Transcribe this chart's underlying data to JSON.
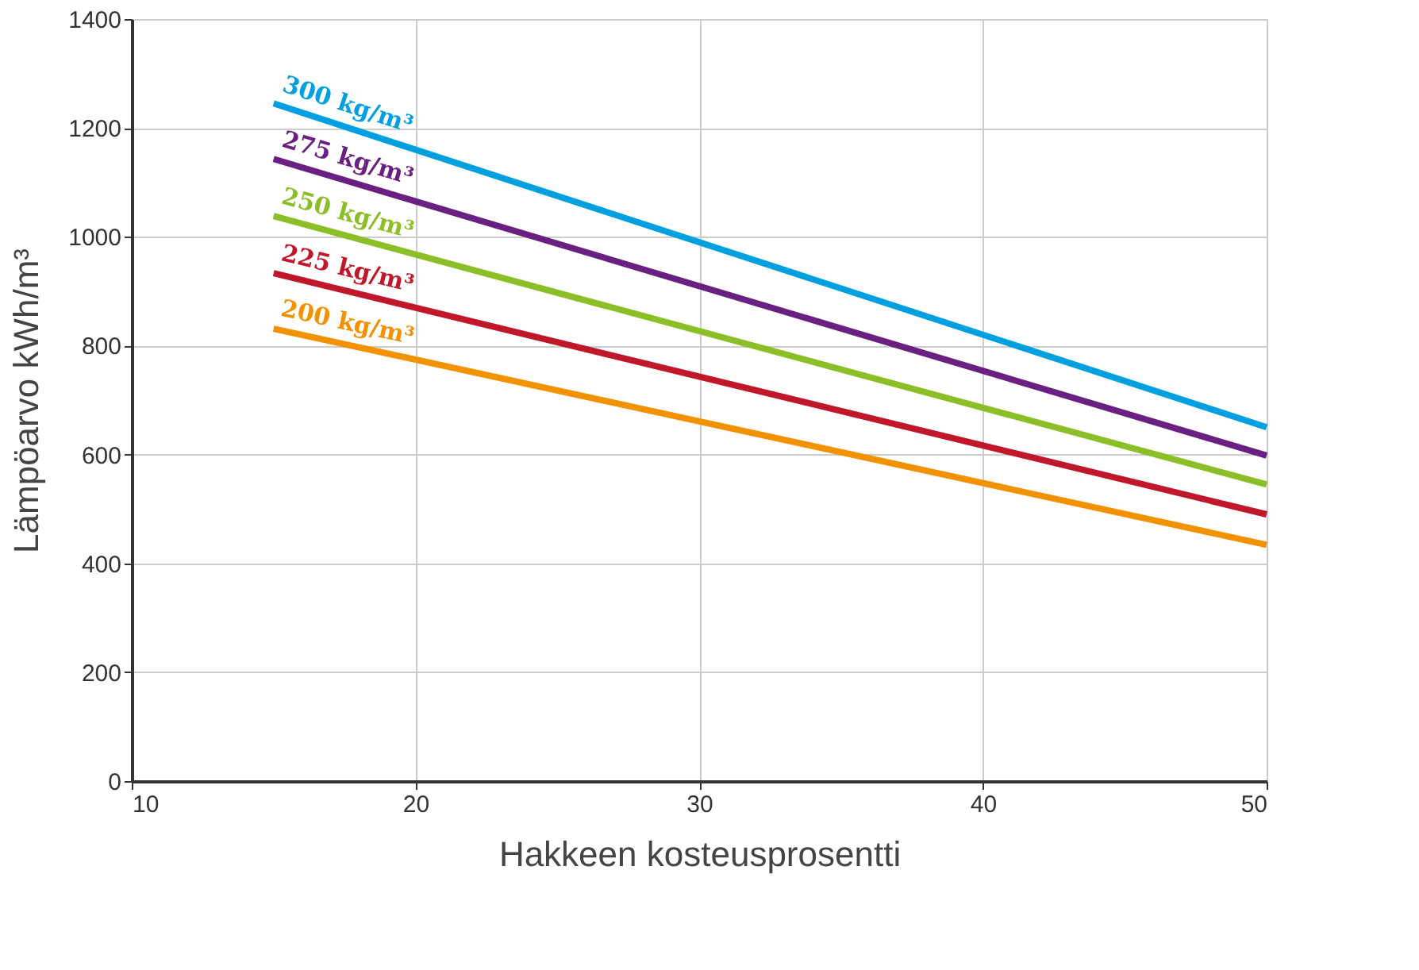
{
  "chart_data": {
    "type": "line",
    "xlabel": "Hakkeen kosteusprosentti",
    "ylabel": "Lämpöarvo kWh/m³",
    "x": [
      15,
      50
    ],
    "series": [
      {
        "name": "300 kg/m³",
        "color": "#00a0e0",
        "values": [
          1245,
          650
        ]
      },
      {
        "name": "275 kg/m³",
        "color": "#6a2080",
        "values": [
          1143,
          598
        ]
      },
      {
        "name": "250 kg/m³",
        "color": "#8cbe28",
        "values": [
          1038,
          545
        ]
      },
      {
        "name": "225 kg/m³",
        "color": "#c0182a",
        "values": [
          933,
          490
        ]
      },
      {
        "name": "200 kg/m³",
        "color": "#f39200",
        "values": [
          831,
          434
        ]
      }
    ],
    "xlim": [
      10,
      50
    ],
    "xticks": [
      10,
      20,
      30,
      40,
      50
    ],
    "ylim": [
      0,
      1400
    ],
    "yticks": [
      0,
      200,
      400,
      600,
      800,
      1000,
      1200,
      1400
    ],
    "grid": true,
    "legend": false,
    "line_style": "solid",
    "marker": "none"
  }
}
